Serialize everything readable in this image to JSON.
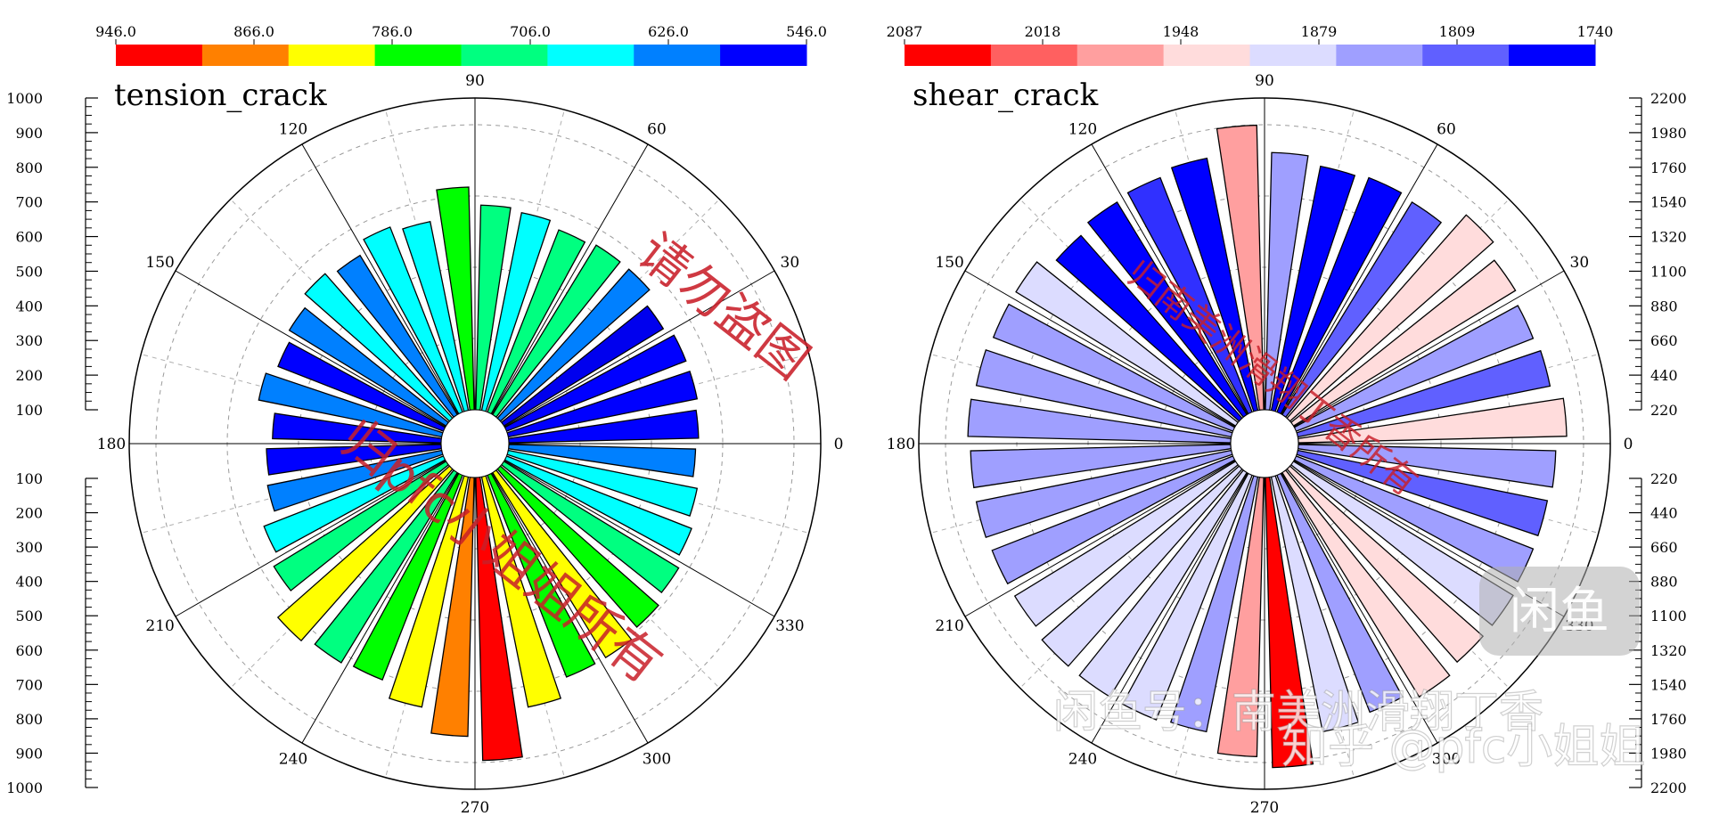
{
  "chart_data": [
    {
      "type": "polar-bar",
      "title": "tension_crack",
      "colorbar": {
        "ticks": [
          "946.0",
          "866.0",
          "786.0",
          "706.0",
          "626.0",
          "546.0"
        ],
        "colors": [
          "#ff0000",
          "#ff8000",
          "#ffff00",
          "#00ff00",
          "#00ff80",
          "#00ffff",
          "#0080ff",
          "#0000ff"
        ]
      },
      "angle_labels": [
        "90",
        "60",
        "30",
        "0",
        "330",
        "300",
        "270",
        "240",
        "210",
        "180",
        "150",
        "120"
      ],
      "radial_axis_upper": [
        "1000",
        "900",
        "800",
        "700",
        "600",
        "500",
        "400",
        "300",
        "200",
        "100"
      ],
      "radial_axis_lower": [
        "100",
        "200",
        "300",
        "400",
        "500",
        "600",
        "700",
        "800",
        "900",
        "1000"
      ],
      "rmax": 1000,
      "bins_deg": 10,
      "series": [
        {
          "angle_start": 0,
          "value": 630,
          "color": "#0000ff"
        },
        {
          "angle_start": 10,
          "value": 640,
          "color": "#0000ff"
        },
        {
          "angle_start": 20,
          "value": 640,
          "color": "#0000ff"
        },
        {
          "angle_start": 30,
          "value": 620,
          "color": "#0000ee"
        },
        {
          "angle_start": 40,
          "value": 660,
          "color": "#0080ff"
        },
        {
          "angle_start": 50,
          "value": 660,
          "color": "#00ff80"
        },
        {
          "angle_start": 60,
          "value": 650,
          "color": "#00ff80"
        },
        {
          "angle_start": 70,
          "value": 670,
          "color": "#00ffff"
        },
        {
          "angle_start": 80,
          "value": 680,
          "color": "#00ff80"
        },
        {
          "angle_start": 90,
          "value": 740,
          "color": "#00ff00"
        },
        {
          "angle_start": 100,
          "value": 640,
          "color": "#00ffff"
        },
        {
          "angle_start": 110,
          "value": 660,
          "color": "#00ffff"
        },
        {
          "angle_start": 120,
          "value": 620,
          "color": "#0080ff"
        },
        {
          "angle_start": 130,
          "value": 640,
          "color": "#00ffff"
        },
        {
          "angle_start": 140,
          "value": 610,
          "color": "#0080ff"
        },
        {
          "angle_start": 150,
          "value": 590,
          "color": "#0000ff"
        },
        {
          "angle_start": 160,
          "value": 620,
          "color": "#0080ff"
        },
        {
          "angle_start": 170,
          "value": 560,
          "color": "#0000ff"
        },
        {
          "angle_start": 180,
          "value": 580,
          "color": "#0000ff"
        },
        {
          "angle_start": 190,
          "value": 590,
          "color": "#0080ff"
        },
        {
          "angle_start": 200,
          "value": 640,
          "color": "#00ffff"
        },
        {
          "angle_start": 210,
          "value": 670,
          "color": "#00ff80"
        },
        {
          "angle_start": 220,
          "value": 760,
          "color": "#ffff00"
        },
        {
          "angle_start": 230,
          "value": 740,
          "color": "#00ff80"
        },
        {
          "angle_start": 240,
          "value": 730,
          "color": "#00ff00"
        },
        {
          "angle_start": 250,
          "value": 780,
          "color": "#ffff00"
        },
        {
          "angle_start": 260,
          "value": 860,
          "color": "#ff8000"
        },
        {
          "angle_start": 270,
          "value": 940,
          "color": "#ff0000"
        },
        {
          "angle_start": 280,
          "value": 780,
          "color": "#ffff00"
        },
        {
          "angle_start": 290,
          "value": 720,
          "color": "#00ff00"
        },
        {
          "angle_start": 300,
          "value": 720,
          "color": "#ffff00"
        },
        {
          "angle_start": 310,
          "value": 700,
          "color": "#00ff00"
        },
        {
          "angle_start": 320,
          "value": 680,
          "color": "#00ff80"
        },
        {
          "angle_start": 330,
          "value": 660,
          "color": "#00ffff"
        },
        {
          "angle_start": 340,
          "value": 640,
          "color": "#00ffff"
        },
        {
          "angle_start": 350,
          "value": 620,
          "color": "#0080ff"
        }
      ]
    },
    {
      "type": "polar-bar",
      "title": "shear_crack",
      "colorbar": {
        "ticks": [
          "2087",
          "2018",
          "1948",
          "1879",
          "1809",
          "1740"
        ],
        "colors": [
          "#ff0000",
          "#ff6060",
          "#ff9f9f",
          "#ffdcdc",
          "#dcdcff",
          "#9f9fff",
          "#6060ff",
          "#0000ff"
        ]
      },
      "angle_labels": [
        "90",
        "60",
        "30",
        "0",
        "330",
        "300",
        "270",
        "240",
        "210",
        "180",
        "150",
        "120"
      ],
      "radial_axis_upper": [
        "2200",
        "1980",
        "1760",
        "1540",
        "1320",
        "1100",
        "880",
        "660",
        "440",
        "220"
      ],
      "radial_axis_lower": [
        "220",
        "440",
        "660",
        "880",
        "1100",
        "1320",
        "1540",
        "1760",
        "1980",
        "2200"
      ],
      "rmax": 2200,
      "bins_deg": 10,
      "series": [
        {
          "angle_start": 0,
          "value": 1960,
          "color": "#ffdcdc"
        },
        {
          "angle_start": 10,
          "value": 1880,
          "color": "#6060ff"
        },
        {
          "angle_start": 20,
          "value": 1860,
          "color": "#9f9fff"
        },
        {
          "angle_start": 30,
          "value": 1900,
          "color": "#ffdcdc"
        },
        {
          "angle_start": 40,
          "value": 1980,
          "color": "#ffdcdc"
        },
        {
          "angle_start": 50,
          "value": 1820,
          "color": "#6060ff"
        },
        {
          "angle_start": 60,
          "value": 1840,
          "color": "#0000ff"
        },
        {
          "angle_start": 70,
          "value": 1820,
          "color": "#0000ff"
        },
        {
          "angle_start": 80,
          "value": 1880,
          "color": "#9f9fff"
        },
        {
          "angle_start": 90,
          "value": 2080,
          "color": "#ff9f9f"
        },
        {
          "angle_start": 100,
          "value": 1880,
          "color": "#0000ff"
        },
        {
          "angle_start": 110,
          "value": 1840,
          "color": "#3030ff"
        },
        {
          "angle_start": 120,
          "value": 1820,
          "color": "#0000ff"
        },
        {
          "angle_start": 130,
          "value": 1780,
          "color": "#0000ff"
        },
        {
          "angle_start": 140,
          "value": 1880,
          "color": "#dcdcff"
        },
        {
          "angle_start": 150,
          "value": 1880,
          "color": "#9f9fff"
        },
        {
          "angle_start": 160,
          "value": 1900,
          "color": "#9f9fff"
        },
        {
          "angle_start": 170,
          "value": 1920,
          "color": "#9f9fff"
        },
        {
          "angle_start": 180,
          "value": 1900,
          "color": "#9f9fff"
        },
        {
          "angle_start": 190,
          "value": 1900,
          "color": "#9f9fff"
        },
        {
          "angle_start": 200,
          "value": 1890,
          "color": "#9f9fff"
        },
        {
          "angle_start": 210,
          "value": 1890,
          "color": "#dcdcff"
        },
        {
          "angle_start": 220,
          "value": 1920,
          "color": "#dcdcff"
        },
        {
          "angle_start": 230,
          "value": 1920,
          "color": "#dcdcff"
        },
        {
          "angle_start": 240,
          "value": 1920,
          "color": "#dcdcff"
        },
        {
          "angle_start": 250,
          "value": 1900,
          "color": "#9f9fff"
        },
        {
          "angle_start": 260,
          "value": 2040,
          "color": "#ff9f9f"
        },
        {
          "angle_start": 270,
          "value": 2120,
          "color": "#ff0000"
        },
        {
          "angle_start": 280,
          "value": 1900,
          "color": "#dcdcff"
        },
        {
          "angle_start": 290,
          "value": 1860,
          "color": "#9f9fff"
        },
        {
          "angle_start": 300,
          "value": 1920,
          "color": "#ffdcdc"
        },
        {
          "angle_start": 310,
          "value": 1880,
          "color": "#ffdcdc"
        },
        {
          "angle_start": 320,
          "value": 1880,
          "color": "#dcdcff"
        },
        {
          "angle_start": 330,
          "value": 1860,
          "color": "#9f9fff"
        },
        {
          "angle_start": 340,
          "value": 1860,
          "color": "#6060ff"
        },
        {
          "angle_start": 350,
          "value": 1880,
          "color": "#9f9fff"
        }
      ]
    }
  ],
  "watermarks": {
    "left_1": "请勿盗图",
    "left_2": "归pfc小姐姐所有",
    "right_1": "归南美洲滑翔丁香所有",
    "right_2": "闲鱼号：南美洲滑翔丁香",
    "right_3": "知乎 @pfc小姐姐",
    "logo": "闲鱼"
  }
}
